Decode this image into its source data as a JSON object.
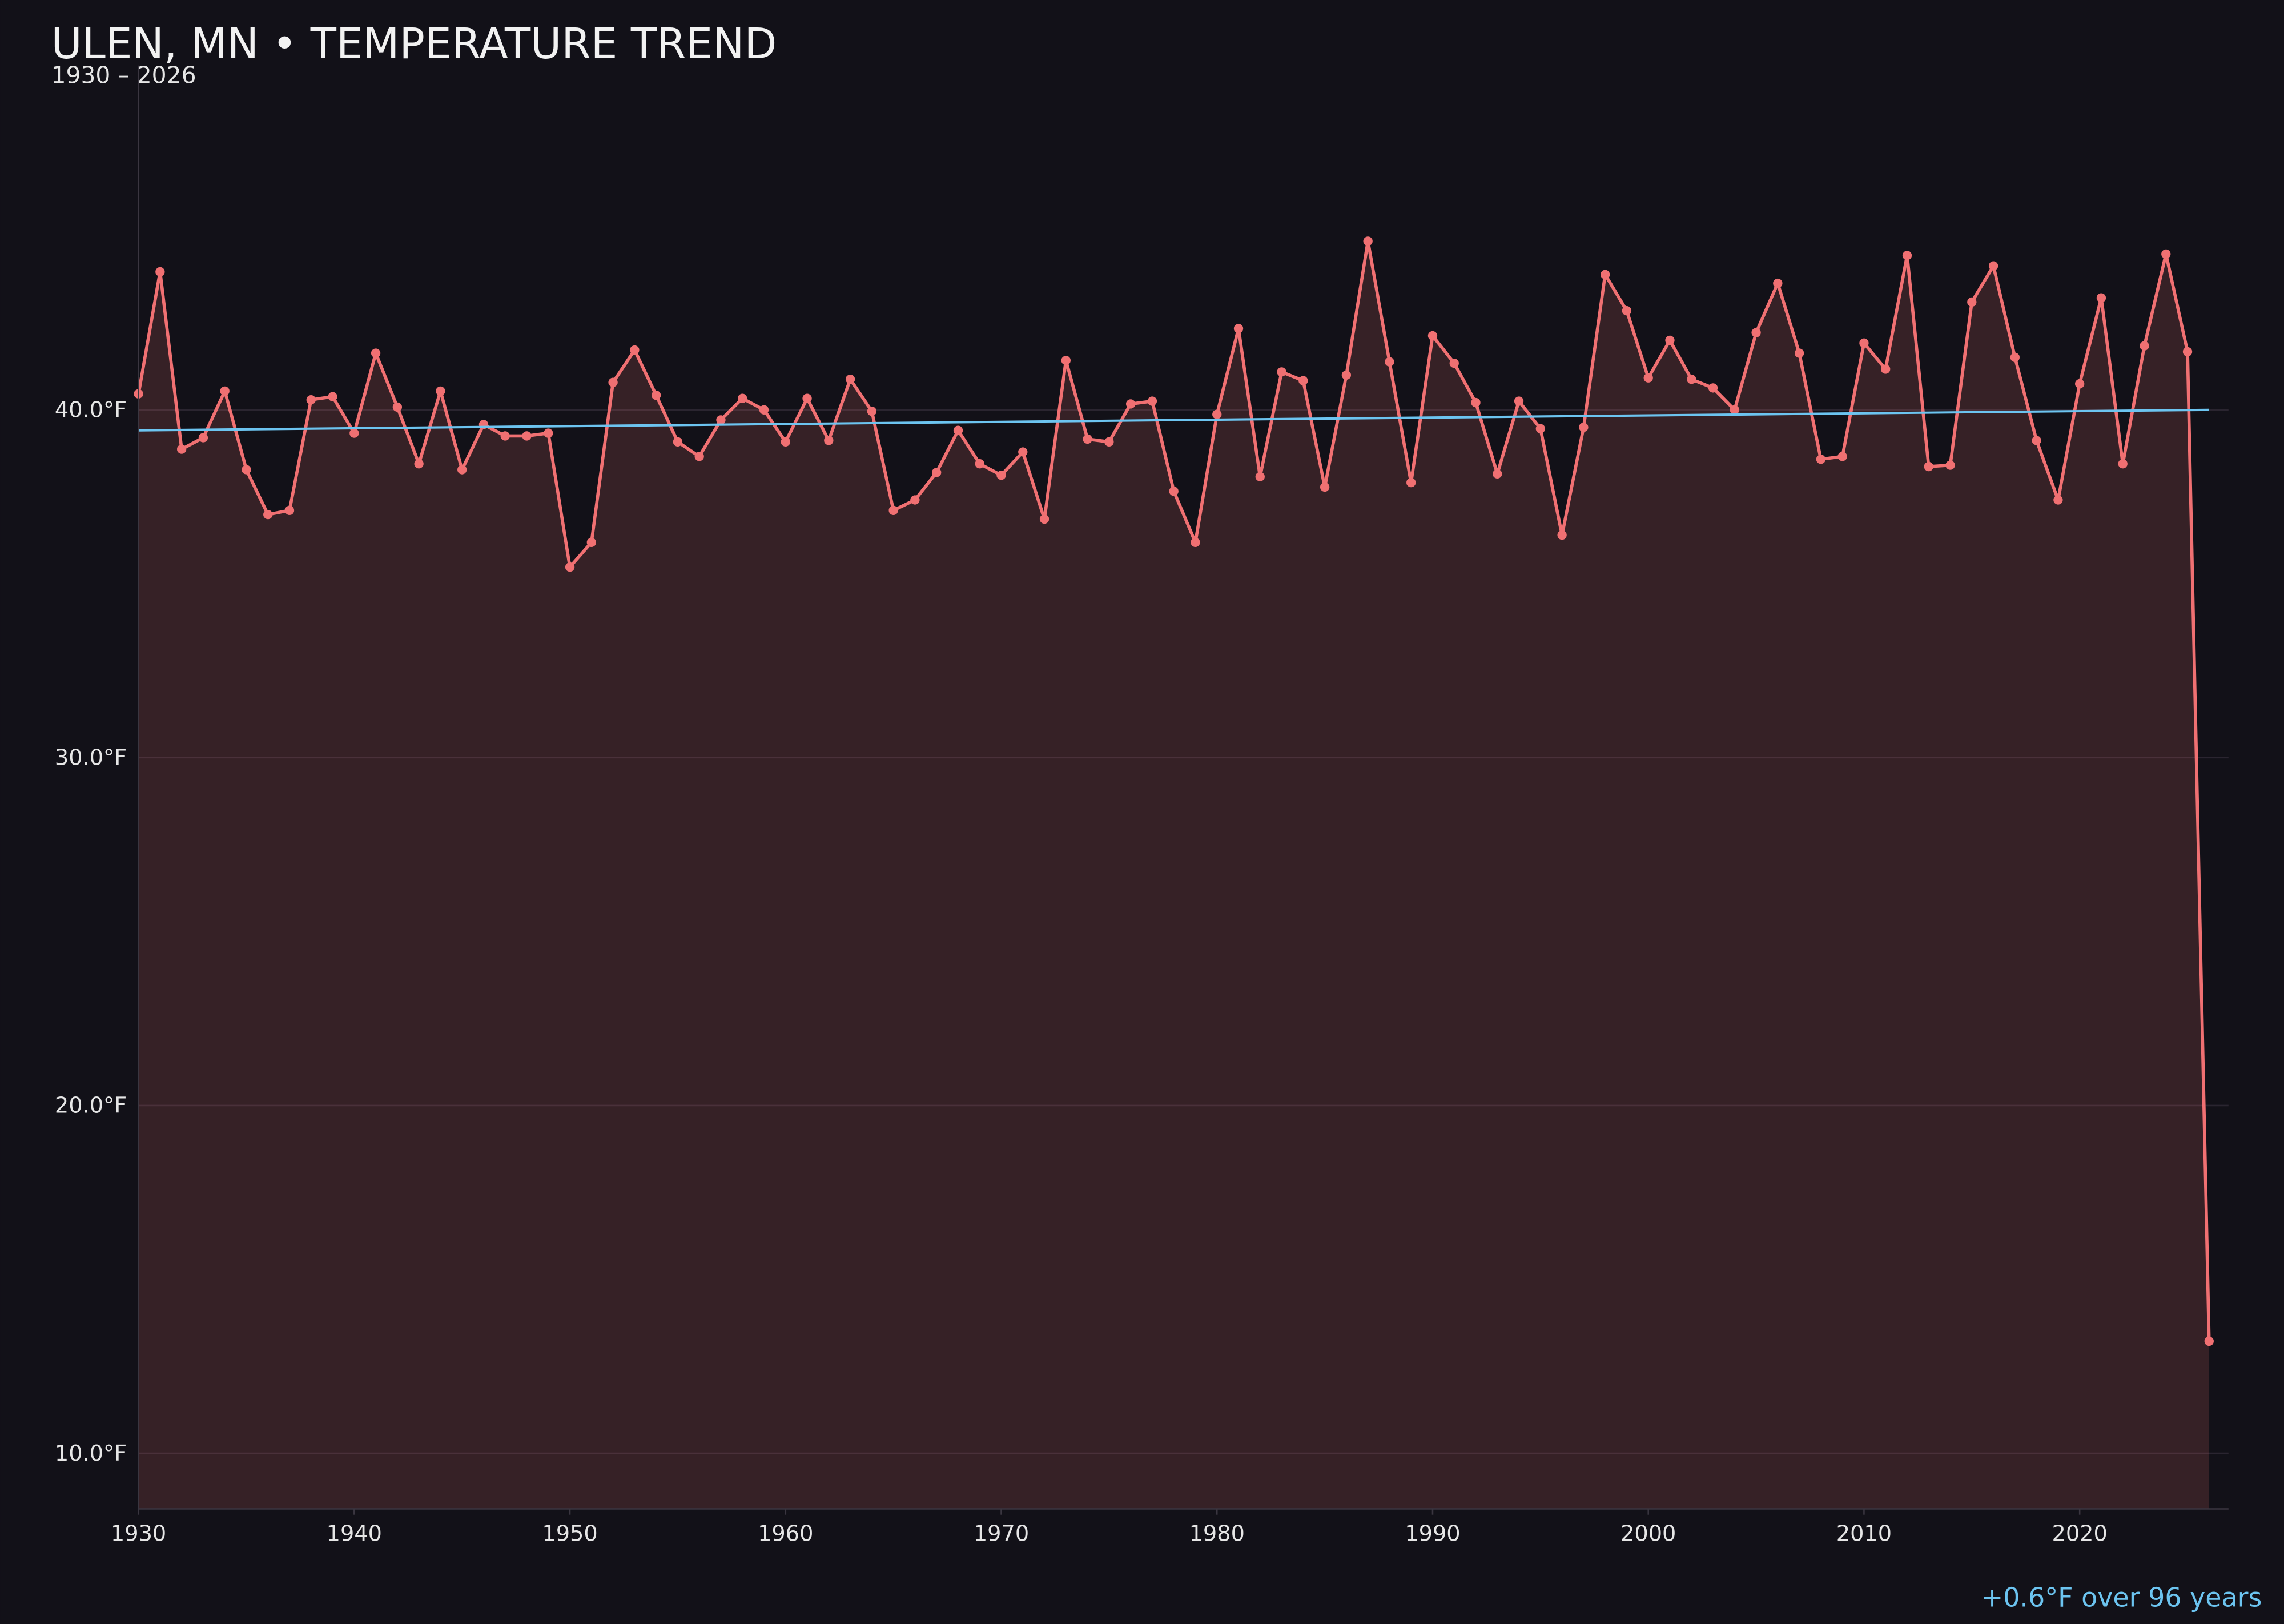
{
  "chart_data": {
    "type": "line",
    "title": "ULEN, MN • TEMPERATURE TREND",
    "subtitle": "1930 – 2026",
    "annotation": "+0.6°F over 96 years",
    "x": [
      1930,
      1931,
      1932,
      1933,
      1934,
      1935,
      1936,
      1937,
      1938,
      1939,
      1940,
      1941,
      1942,
      1943,
      1944,
      1945,
      1946,
      1947,
      1948,
      1949,
      1950,
      1951,
      1952,
      1953,
      1954,
      1955,
      1956,
      1957,
      1958,
      1959,
      1960,
      1961,
      1962,
      1963,
      1964,
      1965,
      1966,
      1967,
      1968,
      1969,
      1970,
      1971,
      1972,
      1973,
      1974,
      1975,
      1976,
      1977,
      1978,
      1979,
      1980,
      1981,
      1982,
      1983,
      1984,
      1985,
      1986,
      1987,
      1988,
      1989,
      1990,
      1991,
      1992,
      1993,
      1994,
      1995,
      1996,
      1997,
      1998,
      1999,
      2000,
      2001,
      2002,
      2003,
      2004,
      2005,
      2006,
      2007,
      2008,
      2009,
      2010,
      2011,
      2012,
      2013,
      2014,
      2015,
      2016,
      2017,
      2018,
      2019,
      2020,
      2021,
      2022,
      2023,
      2024,
      2025,
      2026
    ],
    "series": [
      {
        "color": "#f07072",
        "values": [
          40.46,
          43.97,
          38.87,
          39.2,
          40.54,
          38.28,
          36.99,
          37.11,
          40.29,
          40.38,
          39.33,
          41.63,
          40.08,
          38.45,
          40.54,
          38.28,
          39.58,
          39.25,
          39.25,
          39.33,
          35.48,
          36.19,
          40.79,
          41.72,
          40.42,
          39.08,
          38.66,
          39.71,
          40.33,
          40.0,
          39.08,
          40.33,
          39.12,
          40.88,
          39.96,
          37.11,
          37.41,
          38.2,
          39.41,
          38.45,
          38.12,
          38.79,
          36.86,
          41.42,
          39.16,
          39.08,
          40.17,
          40.25,
          37.66,
          36.19,
          39.87,
          42.34,
          38.08,
          41.09,
          40.84,
          37.78,
          41.0,
          44.85,
          41.38,
          37.91,
          42.13,
          41.34,
          40.21,
          38.16,
          40.25,
          39.46,
          36.4,
          39.5,
          43.89,
          42.85,
          40.92,
          42.0,
          40.88,
          40.63,
          40.0,
          42.22,
          43.64,
          41.63,
          38.58,
          38.66,
          41.92,
          41.17,
          44.44,
          38.37,
          38.41,
          43.1,
          44.14,
          41.51,
          39.12,
          37.41,
          40.75,
          43.22,
          38.45,
          41.84,
          44.48,
          41.67,
          13.22
        ]
      }
    ],
    "trend": {
      "color": "#6cc4f0",
      "x": [
        1930,
        2026
      ],
      "values": [
        39.41,
        40.0
      ]
    },
    "xlim": [
      1930,
      2026.9
    ],
    "ylim": [
      8.4,
      49.9
    ],
    "xticks": [
      1930,
      1940,
      1950,
      1960,
      1970,
      1980,
      1990,
      2000,
      2010,
      2020
    ],
    "yticks": [
      {
        "value": 10,
        "label": "10.0°F"
      },
      {
        "value": 20,
        "label": "20.0°F"
      },
      {
        "value": 30,
        "label": "30.0°F"
      },
      {
        "value": 40,
        "label": "40.0°F"
      }
    ],
    "grid": true
  }
}
